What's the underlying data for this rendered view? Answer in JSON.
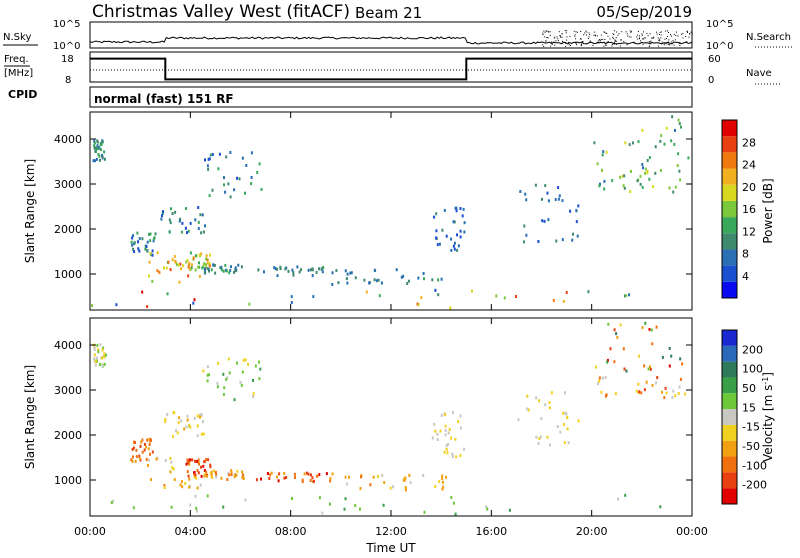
{
  "header": {
    "station": "Christmas Valley West (fitACF)",
    "beam": "Beam 21",
    "date": "05/Sep/2019"
  },
  "panels": {
    "sky_label": "N.Sky",
    "search_label": "N.Search",
    "freq_label_1": "Freq.",
    "freq_label_2": "[MHz]",
    "nave_label": "Nave",
    "cpid_label": "CPID",
    "cpid_value": "normal (fast) 151 RF",
    "noise_tick_high": "10^5",
    "noise_tick_low": "10^0",
    "freq_ticks": [
      "18",
      "8"
    ],
    "nave_ticks": [
      "60",
      "0"
    ]
  },
  "colors": {
    "power": [
      "#0a0af0",
      "#1a4fd0",
      "#2a6fb4",
      "#3f8a6e",
      "#3aa85a",
      "#7cc83c",
      "#d8d820",
      "#f0b020",
      "#f07a10",
      "#e84010",
      "#e00000"
    ],
    "velocity": [
      "#1a28d0",
      "#2a6ab8",
      "#2e7a5a",
      "#3aa048",
      "#6cc838",
      "#c8c8c0",
      "#f0d020",
      "#f0a010",
      "#f07010",
      "#e84010",
      "#e00000"
    ]
  },
  "chart_data": [
    {
      "type": "heatmap",
      "title": "Power",
      "xlabel": "Time UT",
      "ylabel": "Slant Range [km]",
      "x_ticks": [
        "00:00",
        "04:00",
        "08:00",
        "12:00",
        "16:00",
        "20:00",
        "00:00"
      ],
      "xlim": [
        0,
        24
      ],
      "y_ticks": [
        1000,
        2000,
        3000,
        4000
      ],
      "ylim": [
        200,
        4600
      ],
      "colorbar": {
        "label": "Power [dB]",
        "ticks": [
          4,
          8,
          12,
          16,
          20,
          24,
          28
        ],
        "range": [
          0,
          32
        ]
      },
      "regions": [
        {
          "t0": 0.1,
          "t1": 0.6,
          "r0": 3500,
          "r1": 4000,
          "v0": 8,
          "v1": 14
        },
        {
          "t0": 1.6,
          "t1": 2.6,
          "r0": 1400,
          "r1": 1900,
          "v0": 4,
          "v1": 14
        },
        {
          "t0": 2.2,
          "t1": 4.4,
          "r0": 800,
          "r1": 1500,
          "v0": 12,
          "v1": 28
        },
        {
          "t0": 3.8,
          "t1": 4.8,
          "r0": 1050,
          "r1": 1450,
          "v0": 14,
          "v1": 26
        },
        {
          "t0": 4.4,
          "t1": 6.1,
          "r0": 1000,
          "r1": 1200,
          "v0": 6,
          "v1": 14
        },
        {
          "t0": 2.8,
          "t1": 4.6,
          "r0": 1900,
          "r1": 2500,
          "v0": 4,
          "v1": 14
        },
        {
          "t0": 4.4,
          "t1": 6.8,
          "r0": 2700,
          "r1": 3700,
          "v0": 4,
          "v1": 14
        },
        {
          "t0": 6.6,
          "t1": 9.8,
          "r0": 950,
          "r1": 1150,
          "v0": 6,
          "v1": 12
        },
        {
          "t0": 9.6,
          "t1": 14.2,
          "r0": 750,
          "r1": 1100,
          "v0": 6,
          "v1": 12
        },
        {
          "t0": 13.6,
          "t1": 14.9,
          "r0": 1500,
          "r1": 2500,
          "v0": 4,
          "v1": 10
        },
        {
          "t0": 17.0,
          "t1": 19.5,
          "r0": 1700,
          "r1": 3000,
          "v0": 4,
          "v1": 12
        },
        {
          "t0": 20.2,
          "t1": 23.7,
          "r0": 2800,
          "r1": 3300,
          "v0": 8,
          "v1": 20
        },
        {
          "t0": 20.0,
          "t1": 23.9,
          "r0": 3300,
          "r1": 4500,
          "v0": 6,
          "v1": 20
        },
        {
          "t0": 0.0,
          "t1": 24.0,
          "r0": 230,
          "r1": 650,
          "v0": 4,
          "v1": 30
        }
      ]
    },
    {
      "type": "heatmap",
      "title": "Velocity",
      "xlabel": "Time UT",
      "ylabel": "Slant Range [km]",
      "x_ticks": [
        "00:00",
        "04:00",
        "08:00",
        "12:00",
        "16:00",
        "20:00",
        "00:00"
      ],
      "xlim": [
        0,
        24
      ],
      "y_ticks": [
        1000,
        2000,
        3000,
        4000
      ],
      "ylim": [
        200,
        4600
      ],
      "colorbar": {
        "label": "Velocity [m s^-1]",
        "ticks": [
          "200",
          "100",
          "50",
          "15",
          "-15",
          "-50",
          "-100",
          "-200"
        ]
      },
      "regions": [
        {
          "t0": 0.1,
          "t1": 0.6,
          "r0": 3500,
          "r1": 4000,
          "v0": 4,
          "v1": 6
        },
        {
          "t0": 1.6,
          "t1": 2.6,
          "r0": 1400,
          "r1": 1900,
          "v0": 7,
          "v1": 9
        },
        {
          "t0": 2.2,
          "t1": 4.4,
          "r0": 800,
          "r1": 1500,
          "v0": 5,
          "v1": 8
        },
        {
          "t0": 3.8,
          "t1": 4.8,
          "r0": 1050,
          "r1": 1450,
          "v0": 8,
          "v1": 10
        },
        {
          "t0": 4.4,
          "t1": 6.1,
          "r0": 1000,
          "r1": 1200,
          "v0": 5,
          "v1": 8
        },
        {
          "t0": 2.8,
          "t1": 4.6,
          "r0": 1900,
          "r1": 2500,
          "v0": 5,
          "v1": 7
        },
        {
          "t0": 4.4,
          "t1": 6.8,
          "r0": 2700,
          "r1": 3700,
          "v0": 3,
          "v1": 6
        },
        {
          "t0": 6.6,
          "t1": 9.8,
          "r0": 950,
          "r1": 1150,
          "v0": 7,
          "v1": 10
        },
        {
          "t0": 9.6,
          "t1": 14.2,
          "r0": 750,
          "r1": 1100,
          "v0": 5,
          "v1": 8
        },
        {
          "t0": 13.6,
          "t1": 14.9,
          "r0": 1500,
          "r1": 2500,
          "v0": 5,
          "v1": 6
        },
        {
          "t0": 17.0,
          "t1": 19.5,
          "r0": 1700,
          "r1": 3000,
          "v0": 5,
          "v1": 6
        },
        {
          "t0": 20.2,
          "t1": 23.7,
          "r0": 2800,
          "r1": 3300,
          "v0": 5,
          "v1": 9
        },
        {
          "t0": 20.0,
          "t1": 23.9,
          "r0": 3300,
          "r1": 4500,
          "v0": 1,
          "v1": 10
        },
        {
          "t0": 0.0,
          "t1": 24.0,
          "r0": 230,
          "r1": 650,
          "v0": 3,
          "v1": 5
        }
      ]
    }
  ]
}
